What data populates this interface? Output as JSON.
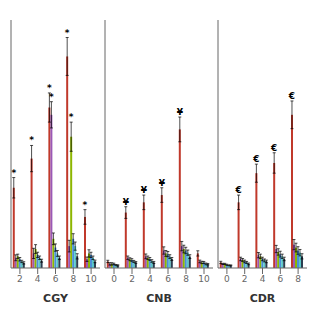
{
  "chart_data": [
    {
      "type": "bar",
      "x_label": "CGY",
      "categories": [
        "2",
        "4",
        "6",
        "8",
        "10"
      ],
      "ylim": [
        0,
        17
      ],
      "tick_labels": "x",
      "grid": false,
      "series": [
        {
          "color": "#c0392b",
          "values": [
            5.5,
            7.5,
            11.0,
            14.5,
            3.5
          ],
          "errors": [
            0.7,
            0.9,
            1.0,
            1.3,
            0.5
          ],
          "annotations": [
            "*",
            "*",
            "*",
            "*",
            "*"
          ]
        },
        {
          "color": "#9b59b6",
          "values": [
            0.7,
            1.0,
            10.5,
            1.5,
            0.6
          ],
          "errors": [
            0.2,
            0.35,
            0.9,
            0.4,
            0.15
          ],
          "annotations": [
            null,
            null,
            "*",
            null,
            null
          ]
        },
        {
          "color": "#8db600",
          "values": [
            0.8,
            1.3,
            2.0,
            9.0,
            1.0
          ],
          "errors": [
            0.15,
            0.3,
            0.4,
            1.0,
            0.25
          ],
          "annotations": [
            null,
            null,
            null,
            "*",
            null
          ]
        },
        {
          "color": "#4a90d9",
          "values": [
            0.6,
            0.9,
            1.4,
            2.0,
            0.9
          ],
          "errors": [
            0.12,
            0.18,
            0.25,
            0.35,
            0.18
          ]
        },
        {
          "color": "#5bc8c8",
          "values": [
            0.45,
            0.7,
            1.0,
            1.5,
            0.7
          ],
          "errors": [
            0.08,
            0.12,
            0.2,
            0.28,
            0.12
          ]
        },
        {
          "color": "#2c3e50",
          "values": [
            0.35,
            0.5,
            0.7,
            0.8,
            0.45
          ],
          "errors": [
            0.08,
            0.1,
            0.12,
            0.18,
            0.09
          ]
        }
      ]
    },
    {
      "type": "bar",
      "x_label": "CNB",
      "categories": [
        "0",
        "2",
        "4",
        "6",
        "8",
        "10"
      ],
      "ylim": [
        0,
        17
      ],
      "tick_labels": "x",
      "grid": false,
      "series": [
        {
          "color": "#c0392b",
          "values": [
            0.45,
            3.8,
            4.5,
            5.0,
            9.5,
            1.0
          ],
          "errors": [
            0.08,
            0.4,
            0.5,
            0.5,
            0.85,
            0.18
          ],
          "annotations": [
            null,
            "¥",
            "¥",
            "¥",
            "¥",
            null
          ]
        },
        {
          "color": "#9b59b6",
          "values": [
            0.28,
            0.7,
            0.8,
            1.2,
            1.5,
            0.45
          ],
          "errors": [
            0.08,
            0.12,
            0.16,
            0.25,
            0.32,
            0.09
          ]
        },
        {
          "color": "#8db600",
          "values": [
            0.28,
            0.6,
            0.7,
            1.0,
            1.3,
            0.38
          ],
          "errors": [
            0.08,
            0.1,
            0.12,
            0.2,
            0.26,
            0.08
          ]
        },
        {
          "color": "#4a90d9",
          "values": [
            0.28,
            0.55,
            0.62,
            0.95,
            1.2,
            0.38
          ],
          "errors": [
            0.05,
            0.09,
            0.1,
            0.18,
            0.22,
            0.07
          ]
        },
        {
          "color": "#5bc8c8",
          "values": [
            0.2,
            0.45,
            0.48,
            0.78,
            1.05,
            0.28
          ],
          "errors": [
            0.04,
            0.07,
            0.09,
            0.13,
            0.18,
            0.06
          ]
        },
        {
          "color": "#2c3e50",
          "values": [
            0.18,
            0.38,
            0.38,
            0.62,
            0.78,
            0.26
          ],
          "errors": [
            0.04,
            0.06,
            0.07,
            0.1,
            0.13,
            0.05
          ]
        }
      ]
    },
    {
      "type": "bar",
      "x_label": "CDR",
      "categories": [
        "0",
        "2",
        "4",
        "6",
        "8"
      ],
      "ylim": [
        0,
        17
      ],
      "tick_labels": "x",
      "grid": false,
      "series": [
        {
          "color": "#c0392b",
          "values": [
            0.38,
            4.5,
            6.5,
            7.2,
            10.5
          ],
          "errors": [
            0.08,
            0.5,
            0.62,
            0.7,
            0.95
          ],
          "annotations": [
            null,
            "€",
            "€",
            "€",
            "€"
          ]
        },
        {
          "color": "#9b59b6",
          "values": [
            0.28,
            0.62,
            0.88,
            1.3,
            1.6
          ],
          "errors": [
            0.04,
            0.12,
            0.18,
            0.25,
            0.35
          ]
        },
        {
          "color": "#8db600",
          "values": [
            0.28,
            0.55,
            0.8,
            1.1,
            1.4
          ],
          "errors": [
            0.04,
            0.1,
            0.15,
            0.22,
            0.3
          ]
        },
        {
          "color": "#4a90d9",
          "values": [
            0.22,
            0.45,
            0.62,
            0.95,
            1.2
          ],
          "errors": [
            0.04,
            0.09,
            0.12,
            0.2,
            0.26
          ]
        },
        {
          "color": "#5bc8c8",
          "values": [
            0.18,
            0.38,
            0.52,
            0.8,
            1.05
          ],
          "errors": [
            0.03,
            0.07,
            0.1,
            0.15,
            0.22
          ]
        },
        {
          "color": "#2c3e50",
          "values": [
            0.18,
            0.28,
            0.45,
            0.62,
            0.8
          ],
          "errors": [
            0.03,
            0.06,
            0.09,
            0.12,
            0.18
          ]
        }
      ]
    }
  ]
}
